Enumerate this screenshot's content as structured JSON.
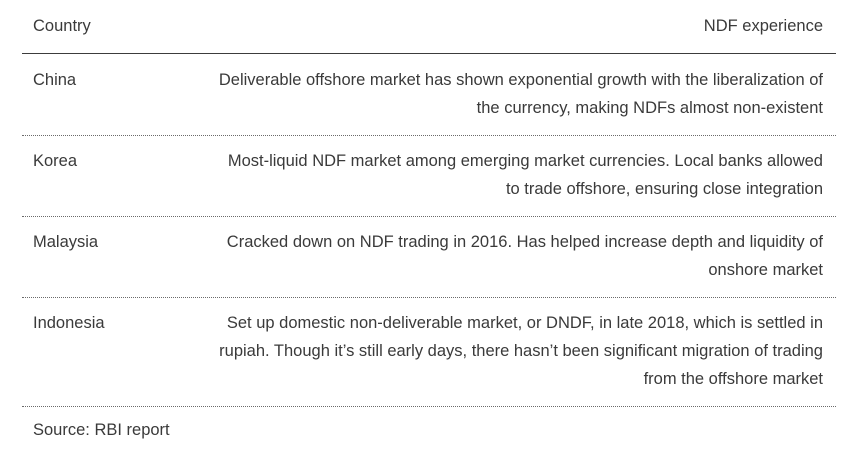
{
  "header": {
    "country": "Country",
    "experience": "NDF experience"
  },
  "rows": [
    {
      "country": "China",
      "lines": [
        "Deliverable offshore market has shown exponential growth with the liberalization of",
        "the currency, making NDFs almost non-existent"
      ]
    },
    {
      "country": "Korea",
      "lines": [
        "Most-liquid NDF market among emerging market currencies. Local banks allowed",
        "to trade offshore, ensuring close integration"
      ]
    },
    {
      "country": "Malaysia",
      "lines": [
        "Cracked down on NDF trading in 2016. Has helped increase depth and liquidity of",
        "onshore market"
      ]
    },
    {
      "country": "Indonesia",
      "lines": [
        "Set up domestic non-deliverable market, or DNDF, in late 2018, which is settled in",
        "rupiah. Though it’s still early days, there hasn’t been significant migration of trading",
        "from the offshore market"
      ]
    }
  ],
  "source": "Source: RBI report"
}
